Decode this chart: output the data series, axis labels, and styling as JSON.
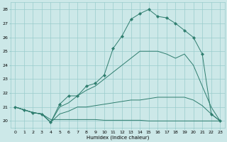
{
  "xlabel": "Humidex (Indice chaleur)",
  "bg_color": "#cce8e8",
  "grid_color": "#99cccc",
  "line_color": "#2e7d6e",
  "xlim": [
    -0.5,
    23.5
  ],
  "ylim": [
    19.5,
    28.5
  ],
  "xticks": [
    0,
    1,
    2,
    3,
    4,
    5,
    6,
    7,
    8,
    9,
    10,
    11,
    12,
    13,
    14,
    15,
    16,
    17,
    18,
    19,
    20,
    21,
    22,
    23
  ],
  "yticks": [
    20,
    21,
    22,
    23,
    24,
    25,
    26,
    27,
    28
  ],
  "line1": {
    "x": [
      0,
      1,
      2,
      3,
      4,
      5,
      6,
      7,
      8,
      9,
      10,
      11,
      12,
      13,
      14,
      15,
      16,
      17,
      18,
      19,
      20,
      21,
      22,
      23
    ],
    "y": [
      21.0,
      20.8,
      20.6,
      20.5,
      20.1,
      20.1,
      20.1,
      20.1,
      20.1,
      20.1,
      20.05,
      20.05,
      20.05,
      20.05,
      20.05,
      20.0,
      20.0,
      20.0,
      20.0,
      20.0,
      20.0,
      20.0,
      20.0,
      20.0
    ]
  },
  "line2": {
    "x": [
      0,
      1,
      2,
      3,
      4,
      5,
      6,
      7,
      8,
      9,
      10,
      11,
      12,
      13,
      14,
      15,
      16,
      17,
      18,
      19,
      20,
      21,
      22,
      23
    ],
    "y": [
      21.0,
      20.8,
      20.6,
      20.5,
      19.9,
      20.5,
      20.7,
      21.0,
      21.0,
      21.1,
      21.2,
      21.3,
      21.4,
      21.5,
      21.5,
      21.6,
      21.7,
      21.7,
      21.7,
      21.7,
      21.5,
      21.1,
      20.5,
      20.0
    ]
  },
  "line3": {
    "x": [
      0,
      1,
      2,
      3,
      4,
      5,
      6,
      7,
      8,
      9,
      10,
      11,
      12,
      13,
      14,
      15,
      16,
      17,
      18,
      19,
      20,
      21,
      22,
      23
    ],
    "y": [
      21.0,
      20.8,
      20.6,
      20.5,
      19.9,
      21.0,
      21.3,
      21.8,
      22.2,
      22.5,
      23.0,
      23.5,
      24.0,
      24.5,
      25.0,
      25.0,
      25.0,
      24.8,
      24.5,
      24.8,
      24.0,
      22.5,
      21.0,
      20.0
    ]
  },
  "line4": {
    "x": [
      0,
      1,
      2,
      3,
      4,
      5,
      6,
      7,
      8,
      9,
      10,
      11,
      12,
      13,
      14,
      15,
      16,
      17,
      18,
      19,
      20,
      21,
      22,
      23
    ],
    "y": [
      21.0,
      20.8,
      20.6,
      20.5,
      19.9,
      21.2,
      21.8,
      21.8,
      22.5,
      22.7,
      23.3,
      25.2,
      26.1,
      27.3,
      27.7,
      28.0,
      27.5,
      27.4,
      27.0,
      26.5,
      26.0,
      24.8,
      20.5,
      20.0
    ]
  }
}
